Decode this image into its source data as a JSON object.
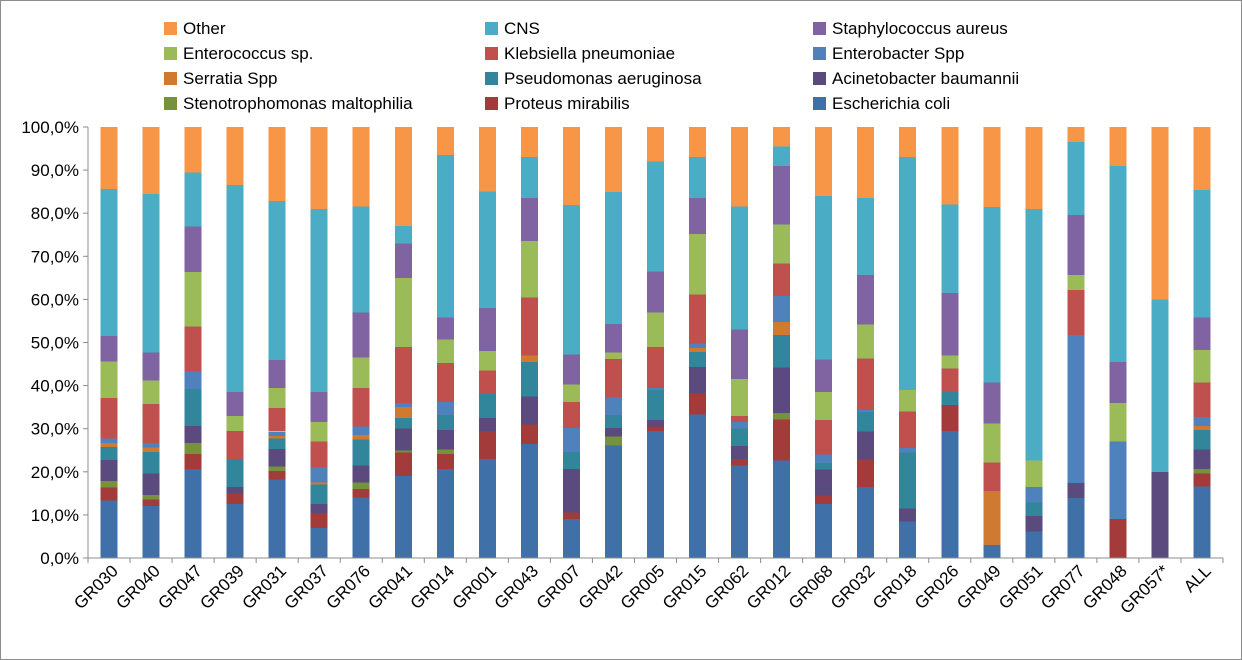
{
  "chart_data": {
    "type": "bar",
    "stacked": "percent",
    "title": "",
    "xlabel": "",
    "ylabel": "",
    "ylim": [
      0,
      100
    ],
    "yticks": [
      "0,0%",
      "10,0%",
      "20,0%",
      "30,0%",
      "40,0%",
      "50,0%",
      "60,0%",
      "70,0%",
      "80,0%",
      "90,0%",
      "100,0%"
    ],
    "grid": false,
    "legend_position": "top",
    "categories": [
      "GR030",
      "GR040",
      "GR047",
      "GR039",
      "GR031",
      "GR037",
      "GR076",
      "GR041",
      "GR014",
      "GR001",
      "GR043",
      "GR007",
      "GR042",
      "GR005",
      "GR015",
      "GR062",
      "GR012",
      "GR068",
      "GR032",
      "GR018",
      "GR026",
      "GR049",
      "GR051",
      "GR077",
      "GR048",
      "GR057*",
      "ALL"
    ],
    "series": [
      {
        "name": "Escherichia coli",
        "color": "#4070A8",
        "values": [
          13.5,
          12,
          20.5,
          12.5,
          18,
          7,
          14,
          19,
          20.5,
          23,
          26.5,
          9,
          26,
          29.5,
          33.5,
          21.5,
          22.5,
          12.5,
          16.5,
          8.5,
          29.5,
          3,
          6,
          14,
          0,
          0,
          16.5
        ]
      },
      {
        "name": "Proteus mirabilis",
        "color": "#A33B3A",
        "values": [
          3,
          1.5,
          3.5,
          2.5,
          2,
          3.5,
          2,
          5.5,
          3.5,
          6.5,
          4.5,
          1.5,
          0,
          1,
          5,
          1.5,
          9.5,
          2,
          6.5,
          0,
          6,
          0,
          0,
          0,
          9,
          0,
          3
        ]
      },
      {
        "name": "Stenotrophomonas maltophilia",
        "color": "#76923C",
        "values": [
          1.5,
          1,
          2.5,
          0,
          1,
          0,
          1.5,
          0.5,
          1,
          0,
          0,
          0,
          2,
          0,
          0,
          0,
          1.5,
          0,
          0,
          0,
          0,
          0,
          0,
          0,
          0,
          0,
          1
        ]
      },
      {
        "name": "Acinetobacter baumannii",
        "color": "#5A4A7E",
        "values": [
          5,
          5,
          4,
          1.5,
          4,
          2,
          4,
          5,
          4.5,
          3,
          6.5,
          10,
          2,
          1.5,
          6,
          3,
          10.5,
          6,
          6.5,
          3,
          0,
          0,
          3.5,
          3.5,
          0,
          20,
          4.5
        ]
      },
      {
        "name": "Pseudomonas aeruginosa",
        "color": "#31869B",
        "values": [
          3,
          5,
          8.5,
          6.5,
          2.5,
          4.5,
          6,
          2.5,
          3.5,
          5.5,
          8,
          4,
          3,
          7,
          3.5,
          4,
          7.5,
          1.5,
          4.5,
          13,
          3,
          0,
          3,
          0,
          0,
          0,
          4.5
        ]
      },
      {
        "name": "Serratia Spp",
        "color": "#D07A30",
        "values": [
          1,
          1,
          0,
          0,
          0.5,
          0.5,
          1,
          2.5,
          0,
          0,
          1.5,
          0,
          0,
          0,
          1,
          0,
          3,
          0,
          0,
          0,
          0,
          12.5,
          0,
          0,
          0,
          0,
          1
        ]
      },
      {
        "name": "Enterobacter Spp",
        "color": "#4F81BD",
        "values": [
          1,
          1,
          4,
          0,
          1,
          3.5,
          2,
          1,
          3,
          0,
          0,
          5.5,
          4,
          0.5,
          1,
          1.5,
          6,
          2,
          0.5,
          1,
          0,
          0,
          3.5,
          34.5,
          18,
          0,
          2
        ]
      },
      {
        "name": "Klebsiella pneumoniae",
        "color": "#C0504D",
        "values": [
          9.5,
          9,
          10.5,
          6.5,
          5.5,
          6,
          9,
          13,
          9,
          5.5,
          13.5,
          6,
          9,
          9.5,
          11.5,
          1.5,
          7.5,
          8,
          12,
          8.5,
          5.5,
          6.5,
          0,
          10.5,
          0,
          0,
          8
        ]
      },
      {
        "name": "Enterococcus sp.",
        "color": "#9BBB59",
        "values": [
          8.5,
          5.5,
          12.5,
          3.5,
          4.5,
          4.5,
          7,
          16,
          5.5,
          4.5,
          13,
          4,
          1.5,
          8,
          14,
          8.5,
          9,
          6.5,
          8,
          5,
          3,
          9,
          6,
          3.5,
          9,
          0,
          7.5
        ]
      },
      {
        "name": "Staphylococcus aureus",
        "color": "#8064A2",
        "values": [
          6,
          6.5,
          10.5,
          5.5,
          6.5,
          7,
          10.5,
          8,
          5,
          10,
          10,
          7,
          6.5,
          9.5,
          8.5,
          11.5,
          13.5,
          7.5,
          11.5,
          0,
          14.5,
          9.5,
          0,
          14,
          9.5,
          0,
          7.5
        ]
      },
      {
        "name": "CNS",
        "color": "#4BACC6",
        "values": [
          34.5,
          36.5,
          12.5,
          48,
          36.5,
          42.5,
          24.5,
          4,
          37.5,
          27,
          9.5,
          34.5,
          30.5,
          25.5,
          9.5,
          28.5,
          4.5,
          38,
          18,
          54,
          20.5,
          40.5,
          56.5,
          17,
          45.5,
          40,
          29.5
        ]
      },
      {
        "name": "Other",
        "color": "#F79646",
        "values": [
          14.5,
          15.5,
          10.5,
          13.5,
          17,
          19,
          18.5,
          23,
          6.5,
          15,
          7,
          18,
          15,
          8,
          7,
          18.5,
          4.5,
          16,
          16.5,
          7,
          18,
          18.5,
          18.5,
          3.5,
          9,
          40,
          14.5
        ]
      }
    ],
    "legend_order": [
      "Other",
      "CNS",
      "Staphylococcus aureus",
      "Enterococcus sp.",
      "Klebsiella pneumoniae",
      "Enterobacter Spp",
      "Serratia Spp",
      "Pseudomonas aeruginosa",
      "Acinetobacter baumannii",
      "Stenotrophomonas maltophilia",
      "Proteus mirabilis",
      "Escherichia coli"
    ]
  }
}
